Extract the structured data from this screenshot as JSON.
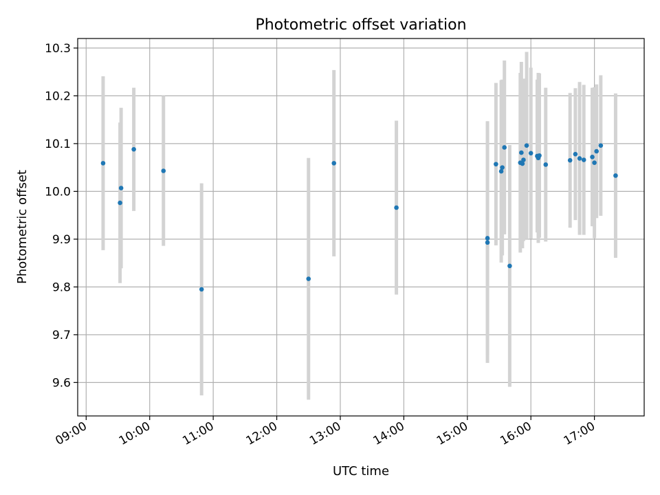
{
  "chart_data": {
    "type": "scatter",
    "title": "Photometric offset variation",
    "xlabel": "UTC time",
    "ylabel": "Photometric offset",
    "x_tick_labels": [
      "09:00",
      "10:00",
      "11:00",
      "12:00",
      "13:00",
      "14:00",
      "15:00",
      "16:00",
      "17:00"
    ],
    "y_tick_labels": [
      "9.6",
      "9.7",
      "9.8",
      "9.9",
      "10.0",
      "10.1",
      "10.2",
      "10.3"
    ],
    "xlim": [
      "08:52",
      "17:47"
    ],
    "ylim": [
      9.53,
      10.32
    ],
    "grid": true,
    "legend": "none",
    "colors": {
      "point": "#1f77b4",
      "errorbar": "#d3d3d3",
      "grid": "#b0b0b0"
    },
    "points": [
      {
        "x": "09:16",
        "y": 10.059,
        "yerr": 0.182
      },
      {
        "x": "09:32",
        "y": 9.976,
        "yerr": 0.168
      },
      {
        "x": "09:33",
        "y": 10.007,
        "yerr": 0.168
      },
      {
        "x": "09:45",
        "y": 10.088,
        "yerr": 0.129
      },
      {
        "x": "10:13",
        "y": 10.043,
        "yerr": 0.157
      },
      {
        "x": "10:49",
        "y": 9.795,
        "yerr": 0.222
      },
      {
        "x": "12:30",
        "y": 9.817,
        "yerr": 0.253
      },
      {
        "x": "12:54",
        "y": 10.059,
        "yerr": 0.195
      },
      {
        "x": "13:53",
        "y": 9.966,
        "yerr": 0.182
      },
      {
        "x": "15:19",
        "y": 9.902,
        "yerr": 0.245
      },
      {
        "x": "15:19",
        "y": 9.893,
        "yerr": 0.252
      },
      {
        "x": "15:27",
        "y": 10.057,
        "yerr": 0.17
      },
      {
        "x": "15:32",
        "y": 10.042,
        "yerr": 0.191
      },
      {
        "x": "15:33",
        "y": 10.05,
        "yerr": 0.184
      },
      {
        "x": "15:35",
        "y": 10.092,
        "yerr": 0.182
      },
      {
        "x": "15:40",
        "y": 9.844,
        "yerr": 0.253
      },
      {
        "x": "15:50",
        "y": 10.06,
        "yerr": 0.188
      },
      {
        "x": "15:51",
        "y": 10.081,
        "yerr": 0.19
      },
      {
        "x": "15:52",
        "y": 10.058,
        "yerr": 0.177
      },
      {
        "x": "15:53",
        "y": 10.066,
        "yerr": 0.17
      },
      {
        "x": "15:56",
        "y": 10.096,
        "yerr": 0.196
      },
      {
        "x": "16:00",
        "y": 10.08,
        "yerr": 0.179
      },
      {
        "x": "16:06",
        "y": 10.074,
        "yerr": 0.16
      },
      {
        "x": "16:07",
        "y": 10.07,
        "yerr": 0.178
      },
      {
        "x": "16:08",
        "y": 10.075,
        "yerr": 0.172
      },
      {
        "x": "16:14",
        "y": 10.056,
        "yerr": 0.161
      },
      {
        "x": "16:37",
        "y": 10.065,
        "yerr": 0.141
      },
      {
        "x": "16:42",
        "y": 10.078,
        "yerr": 0.138
      },
      {
        "x": "16:46",
        "y": 10.069,
        "yerr": 0.16
      },
      {
        "x": "16:50",
        "y": 10.066,
        "yerr": 0.157
      },
      {
        "x": "16:58",
        "y": 10.072,
        "yerr": 0.145
      },
      {
        "x": "17:00",
        "y": 10.06,
        "yerr": 0.158
      },
      {
        "x": "17:02",
        "y": 10.084,
        "yerr": 0.14
      },
      {
        "x": "17:06",
        "y": 10.096,
        "yerr": 0.147
      },
      {
        "x": "17:20",
        "y": 10.033,
        "yerr": 0.172
      }
    ]
  }
}
